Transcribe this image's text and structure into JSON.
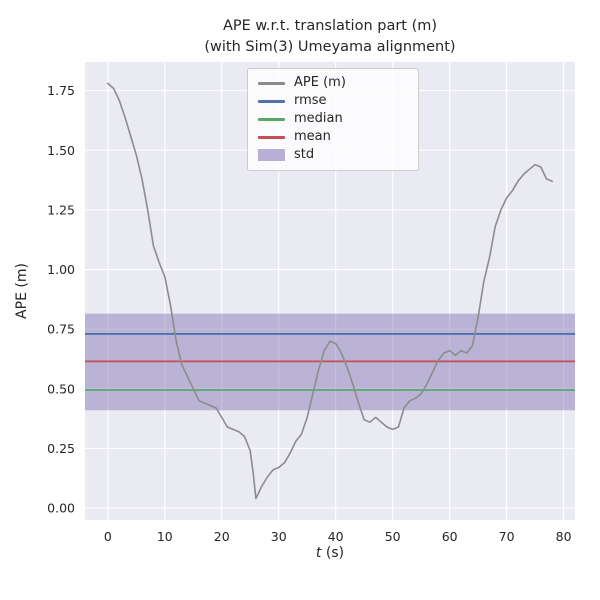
{
  "chart_data": {
    "type": "line",
    "title": "APE w.r.t. translation part (m)",
    "subtitle": "(with Sim(3) Umeyama alignment)",
    "ylabel": "APE (m)",
    "xlabel_var": "t",
    "xlabel_unit": " (s)",
    "xlim": [
      -4,
      82
    ],
    "ylim": [
      -0.05,
      1.87
    ],
    "xticks": [
      0,
      10,
      20,
      30,
      40,
      50,
      60,
      70,
      80
    ],
    "yticks": [
      0.0,
      0.25,
      0.5,
      0.75,
      1.0,
      1.25,
      1.5,
      1.75
    ],
    "grid": true,
    "legend_position": "upper center",
    "colors": {
      "plot_bg": "#eaeaf2",
      "grid": "#ffffff",
      "text": "#262626",
      "ape_line": "#8c8c8c",
      "rmse": "#4c72b0",
      "median": "#55a868",
      "mean": "#c44e52",
      "std": "#8172b2"
    },
    "legend": [
      {
        "label": "APE (m)",
        "color": "#8c8c8c",
        "kind": "line"
      },
      {
        "label": "rmse",
        "color": "#4c72b0",
        "kind": "line"
      },
      {
        "label": "median",
        "color": "#55a868",
        "kind": "line"
      },
      {
        "label": "mean",
        "color": "#c44e52",
        "kind": "line"
      },
      {
        "label": "std",
        "color": "#8172b2",
        "kind": "patch"
      }
    ],
    "hlines": [
      {
        "name": "rmse",
        "color": "#4c72b0",
        "y": 0.73
      },
      {
        "name": "median",
        "color": "#55a868",
        "y": 0.495
      },
      {
        "name": "mean",
        "color": "#c44e52",
        "y": 0.615
      }
    ],
    "band": {
      "name": "std",
      "color": "#8172b2",
      "alpha": 0.45,
      "y_low": 0.41,
      "y_high": 0.815
    },
    "series": [
      {
        "name": "APE (m)",
        "color": "#8c8c8c",
        "x": [
          0,
          1,
          2,
          3,
          4,
          5,
          6,
          7,
          8,
          9,
          10,
          11,
          12,
          13,
          14,
          15,
          16,
          17,
          18,
          19,
          20,
          21,
          22,
          23,
          24,
          25,
          25.5,
          26,
          27,
          28,
          29,
          30,
          31,
          32,
          33,
          34,
          35,
          36,
          37,
          38,
          39,
          40,
          41,
          42,
          43,
          44,
          45,
          46,
          47,
          48,
          49,
          50,
          51,
          52,
          53,
          54,
          55,
          56,
          57,
          58,
          59,
          60,
          61,
          62,
          63,
          64,
          65,
          66,
          67,
          68,
          69,
          70,
          71,
          72,
          73,
          74,
          75,
          76,
          77,
          78
        ],
        "y": [
          1.78,
          1.76,
          1.71,
          1.64,
          1.56,
          1.48,
          1.38,
          1.25,
          1.1,
          1.03,
          0.97,
          0.85,
          0.7,
          0.6,
          0.55,
          0.5,
          0.45,
          0.44,
          0.43,
          0.42,
          0.38,
          0.34,
          0.33,
          0.32,
          0.3,
          0.24,
          0.15,
          0.04,
          0.09,
          0.13,
          0.16,
          0.17,
          0.19,
          0.23,
          0.28,
          0.31,
          0.38,
          0.48,
          0.58,
          0.66,
          0.7,
          0.69,
          0.65,
          0.59,
          0.52,
          0.44,
          0.37,
          0.36,
          0.38,
          0.36,
          0.34,
          0.33,
          0.34,
          0.42,
          0.45,
          0.46,
          0.48,
          0.52,
          0.57,
          0.62,
          0.65,
          0.66,
          0.64,
          0.66,
          0.65,
          0.68,
          0.8,
          0.95,
          1.05,
          1.18,
          1.25,
          1.3,
          1.33,
          1.37,
          1.4,
          1.42,
          1.44,
          1.43,
          1.38,
          1.37
        ]
      }
    ]
  }
}
